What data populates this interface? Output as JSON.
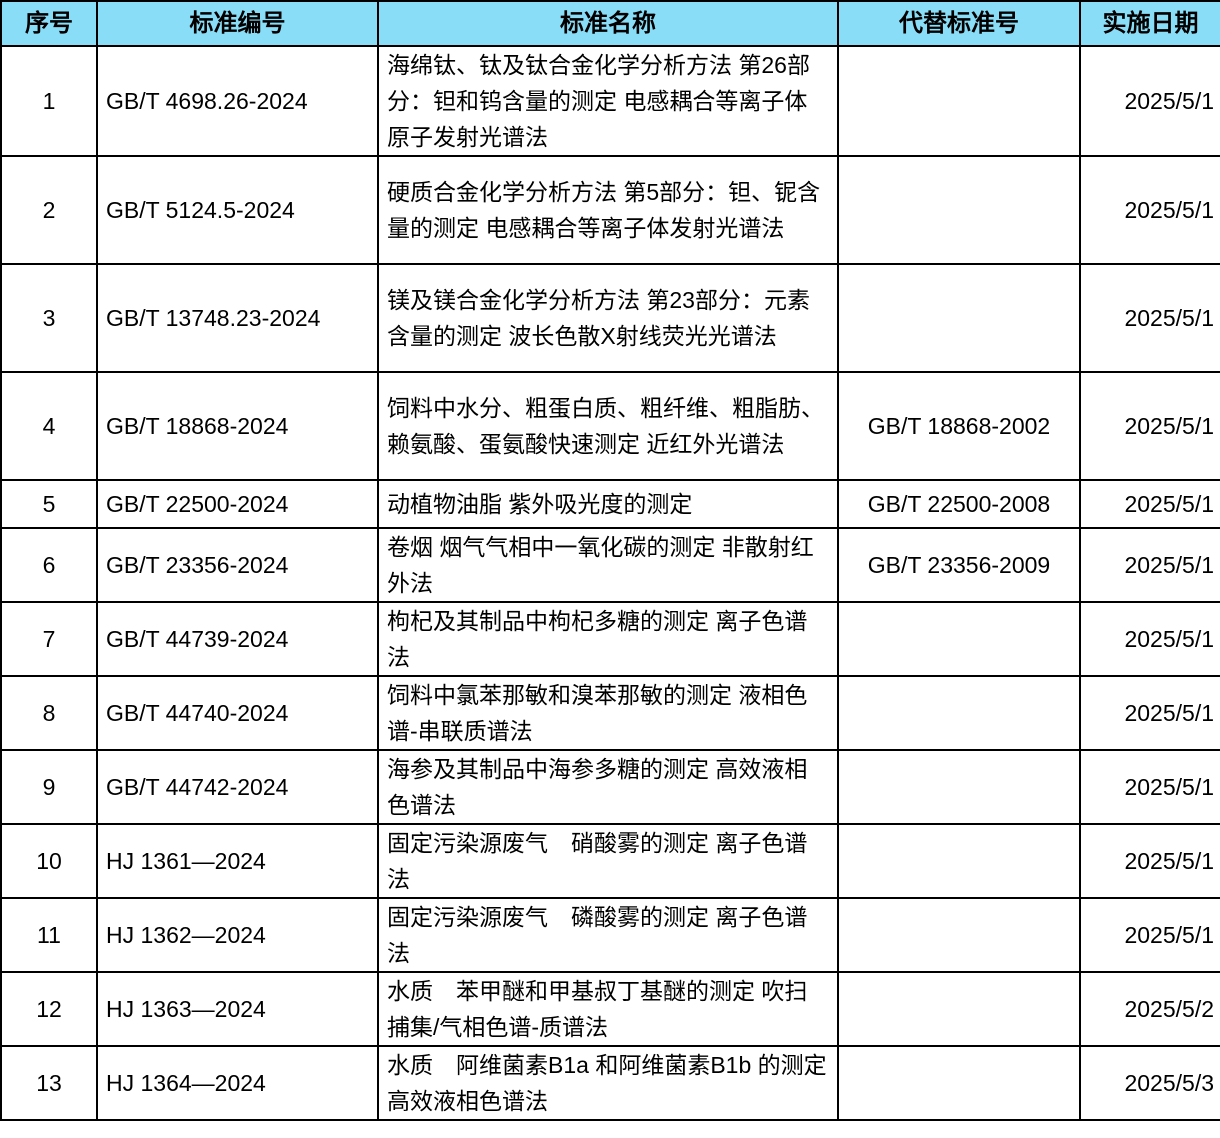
{
  "header": {
    "columns": [
      "序号",
      "标准编号",
      "标准名称",
      "代替标准号",
      "实施日期"
    ],
    "header_bg": "#89ddf7"
  },
  "rows": [
    {
      "no": "1",
      "code": "GB/T 4698.26-2024",
      "name": "海绵钛、钛及钛合金化学分析方法 第26部分：钽和钨含量的测定 电感耦合等离子体原子发射光谱法",
      "replaces": "",
      "date": "2025/5/1"
    },
    {
      "no": "2",
      "code": "GB/T 5124.5-2024",
      "name": "硬质合金化学分析方法 第5部分：钽、铌含量的测定 电感耦合等离子体发射光谱法",
      "replaces": "",
      "date": "2025/5/1"
    },
    {
      "no": "3",
      "code": "GB/T 13748.23-2024",
      "name": "镁及镁合金化学分析方法 第23部分：元素含量的测定 波长色散X射线荧光光谱法",
      "replaces": "",
      "date": "2025/5/1"
    },
    {
      "no": "4",
      "code": "GB/T 18868-2024",
      "name": "饲料中水分、粗蛋白质、粗纤维、粗脂肪、赖氨酸、蛋氨酸快速测定 近红外光谱法",
      "replaces": "GB/T 18868-2002",
      "date": "2025/5/1"
    },
    {
      "no": "5",
      "code": "GB/T 22500-2024",
      "name": "动植物油脂 紫外吸光度的测定",
      "replaces": "GB/T 22500-2008",
      "date": "2025/5/1"
    },
    {
      "no": "6",
      "code": "GB/T 23356-2024",
      "name": "卷烟 烟气气相中一氧化碳的测定 非散射红外法",
      "replaces": "GB/T 23356-2009",
      "date": "2025/5/1"
    },
    {
      "no": "7",
      "code": "GB/T 44739-2024",
      "name": "枸杞及其制品中枸杞多糖的测定 离子色谱法",
      "replaces": "",
      "date": "2025/5/1"
    },
    {
      "no": "8",
      "code": "GB/T 44740-2024",
      "name": "饲料中氯苯那敏和溴苯那敏的测定 液相色谱-串联质谱法",
      "replaces": "",
      "date": "2025/5/1"
    },
    {
      "no": "9",
      "code": "GB/T 44742-2024",
      "name": "海参及其制品中海参多糖的测定 高效液相色谱法",
      "replaces": "",
      "date": "2025/5/1"
    },
    {
      "no": "10",
      "code": "HJ 1361—2024",
      "name": "固定污染源废气　硝酸雾的测定 离子色谱法",
      "replaces": "",
      "date": "2025/5/1"
    },
    {
      "no": "11",
      "code": "HJ 1362—2024",
      "name": "固定污染源废气　磷酸雾的测定 离子色谱法",
      "replaces": "",
      "date": "2025/5/1"
    },
    {
      "no": "12",
      "code": "HJ 1363—2024",
      "name": "水质　苯甲醚和甲基叔丁基醚的测定 吹扫捕集/气相色谱-质谱法",
      "replaces": "",
      "date": "2025/5/2"
    },
    {
      "no": "13",
      "code": "HJ 1364—2024",
      "name": "水质　阿维菌素B1a 和阿维菌素B1b 的测定　高效液相色谱法",
      "replaces": "",
      "date": "2025/5/3"
    }
  ]
}
